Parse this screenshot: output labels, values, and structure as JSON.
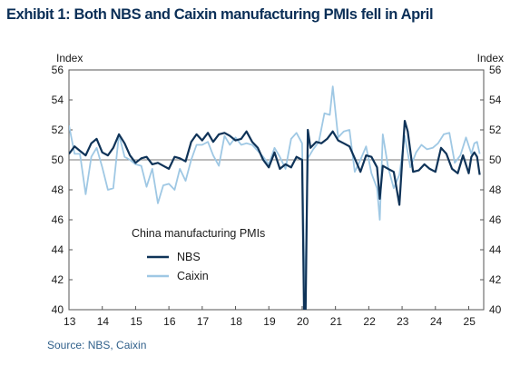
{
  "title": "Exhibit 1: Both NBS and Caixin manufacturing PMIs fell in April",
  "source": "Source: NBS, Caixin",
  "colors": {
    "nbs": "#0f3358",
    "caixin": "#9fc8e4",
    "axis": "#555555",
    "text": "#1a1a1a"
  },
  "chart_data": {
    "type": "line",
    "ylabel_left": "Index",
    "ylabel_right": "Index",
    "ylim": [
      40,
      56
    ],
    "yticks": [
      40,
      42,
      44,
      46,
      48,
      50,
      52,
      54,
      56
    ],
    "xlim": [
      2013.0,
      2025.45
    ],
    "xtick_labels": [
      "13",
      "14",
      "15",
      "16",
      "17",
      "18",
      "19",
      "20",
      "21",
      "22",
      "23",
      "24",
      "25"
    ],
    "reference_line": 50,
    "legend_title": "China  manufacturing  PMIs",
    "grid": false,
    "series": [
      {
        "name": "NBS",
        "color_key": "nbs",
        "x": [
          2013.0,
          2013.17,
          2013.33,
          2013.5,
          2013.67,
          2013.83,
          2014.0,
          2014.17,
          2014.33,
          2014.5,
          2014.67,
          2014.83,
          2015.0,
          2015.17,
          2015.33,
          2015.5,
          2015.67,
          2015.83,
          2016.0,
          2016.17,
          2016.33,
          2016.5,
          2016.67,
          2016.83,
          2017.0,
          2017.17,
          2017.33,
          2017.5,
          2017.67,
          2017.83,
          2018.0,
          2018.17,
          2018.33,
          2018.5,
          2018.67,
          2018.83,
          2019.0,
          2019.17,
          2019.33,
          2019.5,
          2019.67,
          2019.83,
          2020.0,
          2020.08,
          2020.17,
          2020.25,
          2020.42,
          2020.58,
          2020.75,
          2020.92,
          2021.08,
          2021.25,
          2021.42,
          2021.58,
          2021.75,
          2021.92,
          2022.08,
          2022.25,
          2022.33,
          2022.42,
          2022.58,
          2022.75,
          2022.92,
          2023.08,
          2023.17,
          2023.33,
          2023.5,
          2023.67,
          2023.83,
          2024.0,
          2024.17,
          2024.33,
          2024.5,
          2024.67,
          2024.83,
          2025.0,
          2025.08,
          2025.17,
          2025.25,
          2025.33
        ],
        "y": [
          50.4,
          50.9,
          50.6,
          50.3,
          51.1,
          51.4,
          50.5,
          50.3,
          50.8,
          51.7,
          51.1,
          50.3,
          49.8,
          50.1,
          50.2,
          49.7,
          49.8,
          49.6,
          49.4,
          50.2,
          50.1,
          49.9,
          51.2,
          51.7,
          51.3,
          51.8,
          51.2,
          51.7,
          51.8,
          51.6,
          51.3,
          51.4,
          51.9,
          51.2,
          50.8,
          50.0,
          49.5,
          50.5,
          49.4,
          49.7,
          49.5,
          50.2,
          50.0,
          35.7,
          52.0,
          50.8,
          51.2,
          51.1,
          51.4,
          51.9,
          51.3,
          51.1,
          50.9,
          50.1,
          49.2,
          50.3,
          50.2,
          49.5,
          47.4,
          49.6,
          49.4,
          49.2,
          47.0,
          52.6,
          51.9,
          49.2,
          49.3,
          49.7,
          49.4,
          49.2,
          50.8,
          50.4,
          49.4,
          49.1,
          50.3,
          49.1,
          50.2,
          50.5,
          50.2,
          49.0
        ]
      },
      {
        "name": "Caixin",
        "color_key": "caixin",
        "x": [
          2013.0,
          2013.17,
          2013.33,
          2013.5,
          2013.67,
          2013.83,
          2014.0,
          2014.17,
          2014.33,
          2014.5,
          2014.67,
          2014.83,
          2015.0,
          2015.17,
          2015.33,
          2015.5,
          2015.67,
          2015.83,
          2016.0,
          2016.17,
          2016.33,
          2016.5,
          2016.67,
          2016.83,
          2017.0,
          2017.17,
          2017.33,
          2017.5,
          2017.67,
          2017.83,
          2018.0,
          2018.17,
          2018.33,
          2018.5,
          2018.67,
          2018.83,
          2019.0,
          2019.17,
          2019.33,
          2019.5,
          2019.67,
          2019.83,
          2020.0,
          2020.08,
          2020.17,
          2020.33,
          2020.5,
          2020.67,
          2020.83,
          2020.92,
          2021.08,
          2021.25,
          2021.42,
          2021.58,
          2021.75,
          2021.92,
          2022.08,
          2022.25,
          2022.33,
          2022.42,
          2022.58,
          2022.75,
          2022.92,
          2023.08,
          2023.25,
          2023.42,
          2023.58,
          2023.75,
          2023.92,
          2024.08,
          2024.25,
          2024.42,
          2024.58,
          2024.75,
          2024.92,
          2025.08,
          2025.17,
          2025.25,
          2025.33
        ],
        "y": [
          52.3,
          50.4,
          50.4,
          47.7,
          50.2,
          50.8,
          49.5,
          48.0,
          48.1,
          51.7,
          50.2,
          50.0,
          49.7,
          49.6,
          48.2,
          49.4,
          47.1,
          48.3,
          48.4,
          48.0,
          49.4,
          48.6,
          50.0,
          51.0,
          51.0,
          51.2,
          50.3,
          49.6,
          51.6,
          51.0,
          51.5,
          51.0,
          51.1,
          51.0,
          50.6,
          50.2,
          49.7,
          50.8,
          50.2,
          49.4,
          51.4,
          51.8,
          51.1,
          40.3,
          50.1,
          50.7,
          51.2,
          53.1,
          53.0,
          54.9,
          51.5,
          51.9,
          52.0,
          49.2,
          50.0,
          50.9,
          49.1,
          48.1,
          46.0,
          51.7,
          49.5,
          48.1,
          49.0,
          51.6,
          49.5,
          50.5,
          51.0,
          50.7,
          50.8,
          51.1,
          51.7,
          51.8,
          49.8,
          50.3,
          51.5,
          50.4,
          51.1,
          51.2,
          50.4
        ]
      }
    ]
  }
}
